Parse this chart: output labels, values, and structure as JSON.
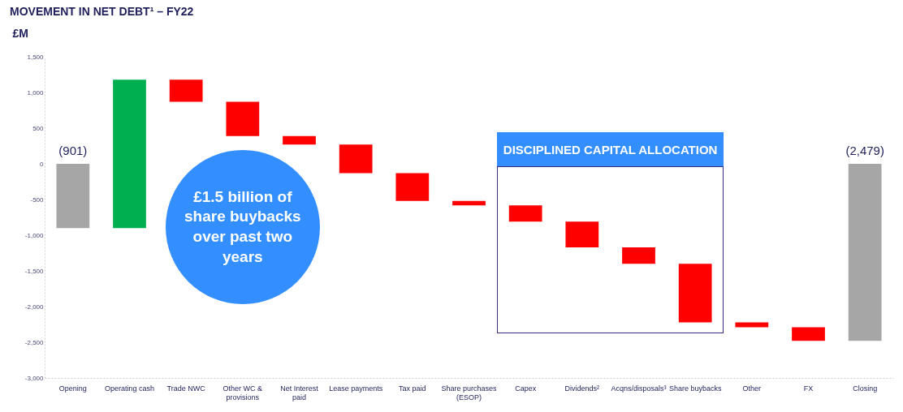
{
  "chart_data": {
    "type": "bar",
    "title": "MOVEMENT IN NET DEBT¹ – FY22",
    "ylabel": "£M",
    "categories": [
      "Opening",
      "Operating cash",
      "Trade NWC",
      "Other WC & provisions",
      "Net Interest paid",
      "Lease payments",
      "Tax paid",
      "Share purchases (ESOP)",
      "Capex",
      "Dividends²",
      "Acqns/disposals³",
      "Share buybacks",
      "Other",
      "FX",
      "Closing"
    ],
    "base": [
      0,
      -901,
      1179,
      869,
      389,
      269,
      -131,
      -521,
      -581,
      -811,
      -1171,
      -1401,
      -2221,
      -2291,
      0
    ],
    "values": [
      -901,
      2080,
      -310,
      -480,
      -120,
      -400,
      -390,
      -60,
      -230,
      -360,
      -230,
      -820,
      -70,
      -190,
      -2479
    ],
    "colors": [
      "#a6a6a6",
      "#00b050",
      "#ff0000",
      "#ff0000",
      "#ff0000",
      "#ff0000",
      "#ff0000",
      "#ff0000",
      "#ff0000",
      "#ff0000",
      "#ff0000",
      "#ff0000",
      "#ff0000",
      "#ff0000",
      "#a6a6a6"
    ],
    "value_labels": [
      "(901)",
      null,
      null,
      null,
      null,
      null,
      null,
      null,
      null,
      null,
      null,
      null,
      null,
      null,
      "(2,479)"
    ],
    "ylim": [
      -3000,
      1500
    ],
    "yticks": [
      {
        "value": -3000,
        "label": "-3,000"
      },
      {
        "value": -2500,
        "label": "-2,500"
      },
      {
        "value": -2000,
        "label": "-2,000"
      },
      {
        "value": -1500,
        "label": "-1,500"
      },
      {
        "value": -1000,
        "label": "-1,000"
      },
      {
        "value": -500,
        "label": "-500"
      },
      0,
      500,
      {
        "value": 1000,
        "label": "1,000"
      },
      {
        "value": 1500,
        "label": "1,500"
      }
    ],
    "grid": false,
    "legend": false,
    "annotations": [
      "£1.5 billion of share buybacks over past two years",
      "DISCIPLINED CAPITAL ALLOCATION"
    ]
  }
}
